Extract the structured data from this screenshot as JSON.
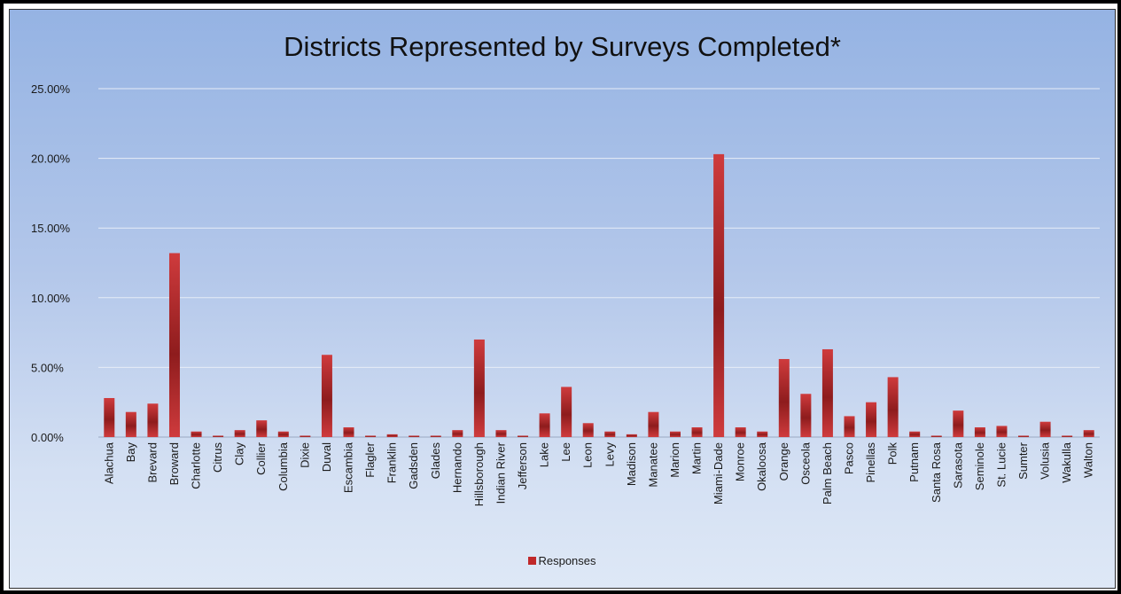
{
  "chart_data": {
    "type": "bar",
    "title": "Districts Represented by Surveys Completed*",
    "xlabel": "",
    "ylabel": "",
    "ylim": [
      0,
      0.25
    ],
    "yticks": [
      "0.00%",
      "5.00%",
      "10.00%",
      "15.00%",
      "20.00%",
      "25.00%"
    ],
    "ytick_values": [
      0,
      0.05,
      0.1,
      0.15,
      0.2,
      0.25
    ],
    "grid": true,
    "legend_position": "bottom",
    "categories": [
      "Alachua",
      "Bay",
      "Brevard",
      "Broward",
      "Charlotte",
      "Citrus",
      "Clay",
      "Collier",
      "Columbia",
      "Dixie",
      "Duval",
      "Escambia",
      "Flagler",
      "Franklin",
      "Gadsden",
      "Glades",
      "Hernando",
      "Hillsborough",
      "Indian River",
      "Jefferson",
      "Lake",
      "Lee",
      "Leon",
      "Levy",
      "Madison",
      "Manatee",
      "Marion",
      "Martin",
      "Miami-Dade",
      "Monroe",
      "Okaloosa",
      "Orange",
      "Osceola",
      "Palm Beach",
      "Pasco",
      "Pinellas",
      "Polk",
      "Putnam",
      "Santa Rosa",
      "Sarasota",
      "Seminole",
      "St. Lucie",
      "Sumter",
      "Volusia",
      "Wakulla",
      "Walton"
    ],
    "series": [
      {
        "name": "Responses",
        "color": "#c0282a",
        "values": [
          0.028,
          0.018,
          0.024,
          0.132,
          0.004,
          0.001,
          0.005,
          0.012,
          0.004,
          0.001,
          0.059,
          0.007,
          0.001,
          0.002,
          0.001,
          0.001,
          0.005,
          0.07,
          0.005,
          0.001,
          0.017,
          0.036,
          0.01,
          0.004,
          0.002,
          0.018,
          0.004,
          0.007,
          0.203,
          0.007,
          0.004,
          0.056,
          0.031,
          0.063,
          0.015,
          0.025,
          0.043,
          0.004,
          0.001,
          0.019,
          0.007,
          0.008,
          0.001,
          0.011,
          0.001,
          0.005
        ]
      }
    ]
  },
  "colors": {
    "bar": "#c0282a",
    "bar_light": "#cf3b3d",
    "bar_dark": "#8e1c1d",
    "gridline": "#e6ecf7",
    "background_top": "#95b3e3",
    "background_bottom": "#dee8f6"
  }
}
